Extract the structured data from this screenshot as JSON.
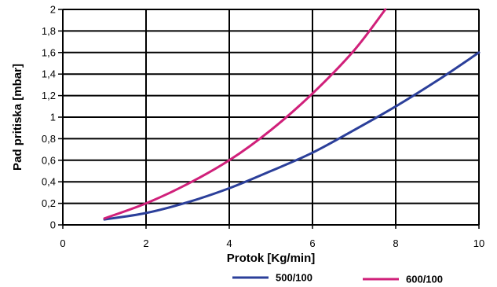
{
  "chart_data": {
    "type": "line",
    "xlabel": "Protok [Kg/min]",
    "ylabel": "Pad pritiska [mbar]",
    "xlim": [
      0,
      10
    ],
    "ylim": [
      0,
      2
    ],
    "x_ticks": [
      "0",
      "2",
      "4",
      "6",
      "8",
      "10"
    ],
    "y_ticks": [
      "0",
      "0,2",
      "0,4",
      "0,6",
      "0,8",
      "1",
      "1,2",
      "1,4",
      "1,6",
      "1,8",
      "2"
    ],
    "grid": true,
    "legend_position": "bottom",
    "series": [
      {
        "name": "500/100",
        "color": "#2b3f9a",
        "x": [
          1,
          2,
          3,
          4,
          5,
          6,
          7,
          8,
          9,
          10
        ],
        "y": [
          0.05,
          0.11,
          0.21,
          0.34,
          0.5,
          0.67,
          0.88,
          1.1,
          1.34,
          1.6
        ]
      },
      {
        "name": "600/100",
        "color": "#d0207a",
        "x": [
          1,
          2,
          3,
          4,
          5,
          6,
          7,
          7.75
        ],
        "y": [
          0.06,
          0.2,
          0.38,
          0.6,
          0.88,
          1.22,
          1.62,
          2.0
        ]
      }
    ]
  }
}
